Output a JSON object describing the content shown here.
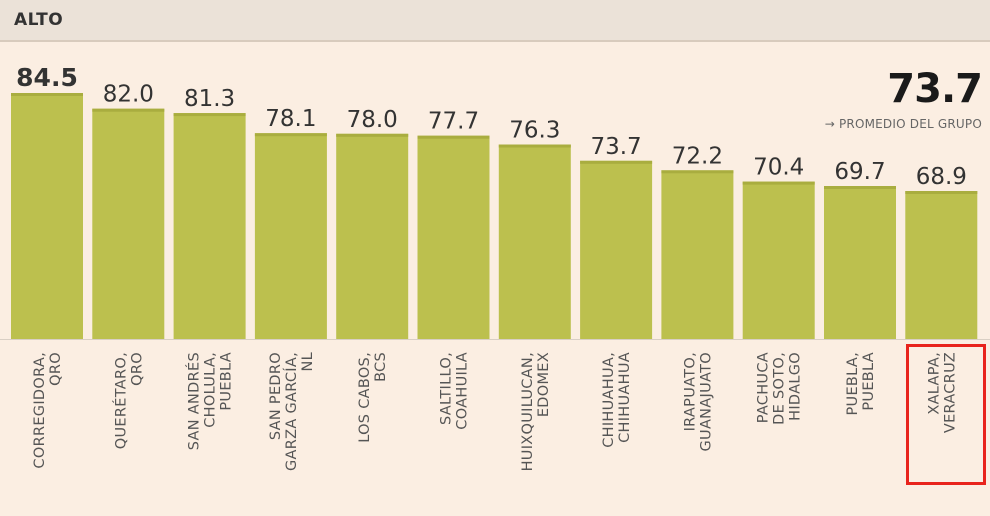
{
  "header": {
    "title": "ALTO"
  },
  "average": {
    "value": "73.7",
    "label": "PROMEDIO DEL GRUPO",
    "arrow_icon": "arrow-right-icon"
  },
  "colors": {
    "bar": "#bcc04e",
    "background": "#fbeee2",
    "header": "#ebe2d8",
    "highlight": "#e8231c"
  },
  "chart_data": {
    "type": "bar",
    "title": "ALTO",
    "categories": [
      [
        "CORREGIDORA,",
        "QRO"
      ],
      [
        "QUERÉTARO,",
        "QRO"
      ],
      [
        "SAN ANDRÉS",
        "CHOLULA,",
        "PUEBLA"
      ],
      [
        "SAN PEDRO",
        "GARZA GARCÍA,",
        "NL"
      ],
      [
        "LOS CABOS,",
        "BCS"
      ],
      [
        "SALTILLO,",
        "COAHUILA"
      ],
      [
        "HUIXQUILUCAN,",
        "EDOMEX"
      ],
      [
        "CHIHUAHUA,",
        "CHIHUAHUA"
      ],
      [
        "IRAPUATO,",
        "GUANAJUATO"
      ],
      [
        "PACHUCA",
        "DE SOTO,",
        "HIDALGO"
      ],
      [
        "PUEBLA,",
        "PUEBLA"
      ],
      [
        "XALAPA,",
        "VERACRUZ"
      ]
    ],
    "values": [
      84.5,
      82.0,
      81.3,
      78.1,
      78.0,
      77.7,
      76.3,
      73.7,
      72.2,
      70.4,
      69.7,
      68.9
    ],
    "value_labels": [
      "84.5",
      "82.0",
      "81.3",
      "78.1",
      "78.0",
      "77.7",
      "76.3",
      "73.7",
      "72.2",
      "70.4",
      "69.7",
      "68.9"
    ],
    "group_average": 73.7,
    "highlighted_category": "XALAPA, VERACRUZ",
    "grid": false,
    "legend": "none"
  }
}
